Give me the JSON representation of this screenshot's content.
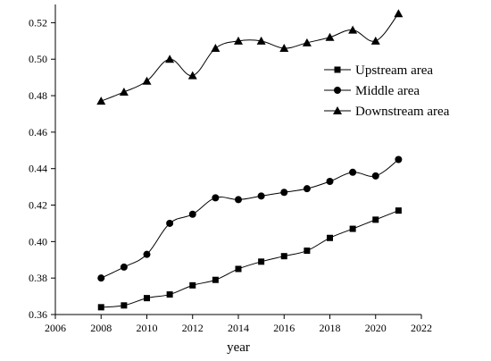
{
  "chart_data": {
    "type": "line",
    "title": "",
    "xlabel": "year",
    "ylabel": "",
    "xlim": [
      2006,
      2022
    ],
    "ylim": [
      0.36,
      0.53
    ],
    "x_ticks": [
      2006,
      2008,
      2010,
      2012,
      2014,
      2016,
      2018,
      2020,
      2022
    ],
    "y_ticks": [
      0.36,
      0.38,
      0.4,
      0.42,
      0.44,
      0.46,
      0.48,
      0.5,
      0.52
    ],
    "x_tick_labels": [
      "2006",
      "2008",
      "2010",
      "2012",
      "2014",
      "2016",
      "2018",
      "2020",
      "2022"
    ],
    "y_tick_labels": [
      "0.36",
      "0.38",
      "0.40",
      "0.42",
      "0.44",
      "0.46",
      "0.48",
      "0.50",
      "0.52"
    ],
    "x": [
      2008,
      2009,
      2010,
      2011,
      2012,
      2013,
      2014,
      2015,
      2016,
      2017,
      2018,
      2019,
      2020,
      2021
    ],
    "series": [
      {
        "name": "Upstream area",
        "marker": "square",
        "values": [
          0.364,
          0.365,
          0.369,
          0.371,
          0.376,
          0.379,
          0.385,
          0.389,
          0.392,
          0.395,
          0.402,
          0.407,
          0.412,
          0.417
        ]
      },
      {
        "name": "Middle area",
        "marker": "circle",
        "values": [
          0.38,
          0.386,
          0.393,
          0.41,
          0.415,
          0.424,
          0.423,
          0.425,
          0.427,
          0.429,
          0.433,
          0.438,
          0.436,
          0.445
        ]
      },
      {
        "name": "Downstream area",
        "marker": "triangle",
        "values": [
          0.477,
          0.482,
          0.488,
          0.5,
          0.491,
          0.506,
          0.51,
          0.51,
          0.506,
          0.509,
          0.512,
          0.516,
          0.51,
          0.525
        ]
      }
    ],
    "legend_position": "top-right",
    "grid": false,
    "line_color": "#000000"
  }
}
